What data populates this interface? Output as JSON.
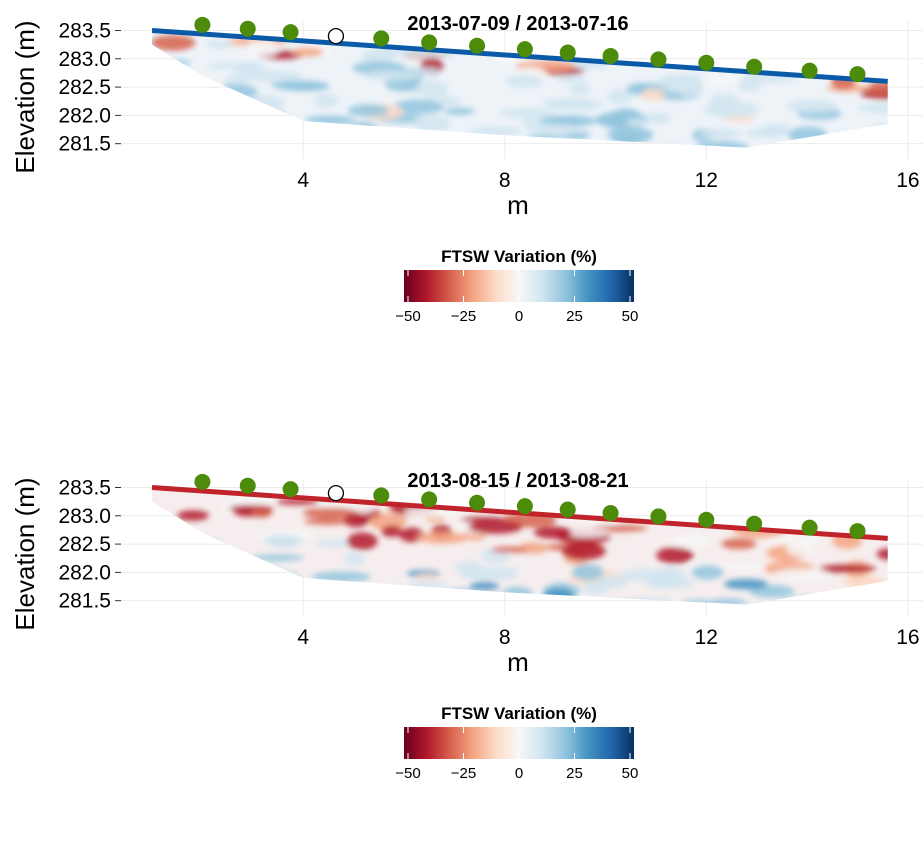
{
  "colorscale": {
    "stops": [
      "#67001f",
      "#b2182b",
      "#d6604d",
      "#f4a582",
      "#fddbc7",
      "#f7f7f7",
      "#d1e5f0",
      "#92c5de",
      "#4393c3",
      "#2166ac",
      "#053061"
    ]
  },
  "chart_data": [
    {
      "type": "heatmap",
      "title": "2013-07-09 / 2013-07-16",
      "xlabel": "m",
      "ylabel": "Elevation (m)",
      "xlim": [
        1,
        16.3
      ],
      "ylim": [
        281.3,
        283.65
      ],
      "x_ticks": [
        4,
        8,
        12,
        16
      ],
      "x_tick_labels": [
        "4",
        "8",
        "12",
        "16"
      ],
      "y_ticks": [
        281.5,
        282.0,
        282.5,
        283.0,
        283.5
      ],
      "y_tick_labels": [
        "281.5",
        "282.0",
        "282.5",
        "283.0",
        "283.5"
      ],
      "legend_title": "FTSW Variation (%)",
      "legend_range": [
        -50,
        50
      ],
      "legend_ticks": [
        -50,
        -25,
        0,
        25,
        50
      ],
      "legend_tick_labels": [
        "−50",
        "−25",
        "0",
        "25",
        "50"
      ],
      "surface_line_color": "#0b5aa8",
      "surface": {
        "x": [
          1.0,
          15.6
        ],
        "y": [
          283.5,
          282.6
        ]
      },
      "bottom_boundary": {
        "x": [
          1.0,
          2.0,
          4.0,
          8.0,
          12.8,
          15.6
        ],
        "y": [
          283.25,
          282.7,
          281.9,
          281.65,
          281.43,
          281.85
        ]
      },
      "electrodes_filled": {
        "x": [
          2.0,
          2.9,
          3.75,
          5.55,
          6.5,
          7.45,
          8.4,
          9.25,
          10.1,
          11.05,
          12.0,
          12.95,
          14.05,
          15.0
        ],
        "y": [
          283.6,
          283.53,
          283.47,
          283.36,
          283.29,
          283.23,
          283.17,
          283.11,
          283.05,
          282.99,
          282.93,
          282.86,
          282.79,
          282.73
        ]
      },
      "electrodes_open": {
        "x": [
          4.65
        ],
        "y": [
          283.4
        ]
      }
    },
    {
      "type": "heatmap",
      "title": "2013-08-15 / 2013-08-21",
      "xlabel": "m",
      "ylabel": "Elevation (m)",
      "xlim": [
        1,
        16.3
      ],
      "ylim": [
        281.3,
        283.65
      ],
      "x_ticks": [
        4,
        8,
        12,
        16
      ],
      "x_tick_labels": [
        "4",
        "8",
        "12",
        "16"
      ],
      "y_ticks": [
        281.5,
        282.0,
        282.5,
        283.0,
        283.5
      ],
      "y_tick_labels": [
        "281.5",
        "282.0",
        "282.5",
        "283.0",
        "283.5"
      ],
      "legend_title": "FTSW Variation (%)",
      "legend_range": [
        -50,
        50
      ],
      "legend_ticks": [
        -50,
        -25,
        0,
        25,
        50
      ],
      "legend_tick_labels": [
        "−50",
        "−25",
        "0",
        "25",
        "50"
      ],
      "surface_line_color": "#c0232a",
      "surface": {
        "x": [
          1.0,
          15.6
        ],
        "y": [
          283.5,
          282.6
        ]
      },
      "bottom_boundary": {
        "x": [
          1.0,
          2.0,
          4.0,
          8.0,
          12.8,
          15.6
        ],
        "y": [
          283.25,
          282.7,
          281.9,
          281.65,
          281.43,
          281.85
        ]
      },
      "electrodes_filled": {
        "x": [
          2.0,
          2.9,
          3.75,
          5.55,
          6.5,
          7.45,
          8.4,
          9.25,
          10.1,
          11.05,
          12.0,
          12.95,
          14.05,
          15.0
        ],
        "y": [
          283.6,
          283.53,
          283.47,
          283.36,
          283.29,
          283.23,
          283.17,
          283.11,
          283.05,
          282.99,
          282.93,
          282.86,
          282.79,
          282.73
        ]
      },
      "electrodes_open": {
        "x": [
          4.65
        ],
        "y": [
          283.4
        ]
      }
    }
  ]
}
